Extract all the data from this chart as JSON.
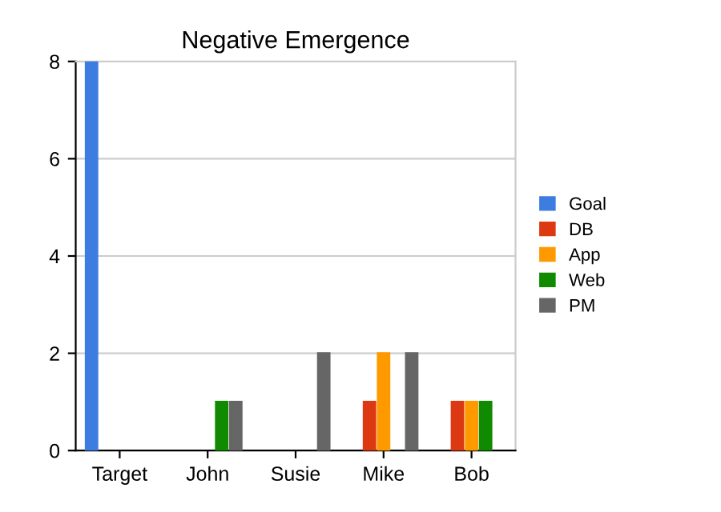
{
  "chart_data": {
    "type": "bar",
    "title": "Negative Emergence",
    "categories": [
      "Target",
      "John",
      "Susie",
      "Mike",
      "Bob"
    ],
    "series": [
      {
        "name": "Goal",
        "color": "#3c7ddf",
        "values": [
          8,
          null,
          null,
          null,
          null
        ]
      },
      {
        "name": "DB",
        "color": "#dc3912",
        "values": [
          null,
          null,
          null,
          1,
          1
        ]
      },
      {
        "name": "App",
        "color": "#ff9900",
        "values": [
          null,
          null,
          null,
          2,
          1
        ]
      },
      {
        "name": "Web",
        "color": "#108a00",
        "values": [
          null,
          1,
          null,
          null,
          1
        ]
      },
      {
        "name": "PM",
        "color": "#666666",
        "values": [
          null,
          1,
          2,
          2,
          null
        ]
      }
    ],
    "ylim": [
      0,
      8
    ],
    "yticks": [
      0,
      2,
      4,
      6,
      8
    ],
    "grid": "y",
    "legend": "right"
  }
}
